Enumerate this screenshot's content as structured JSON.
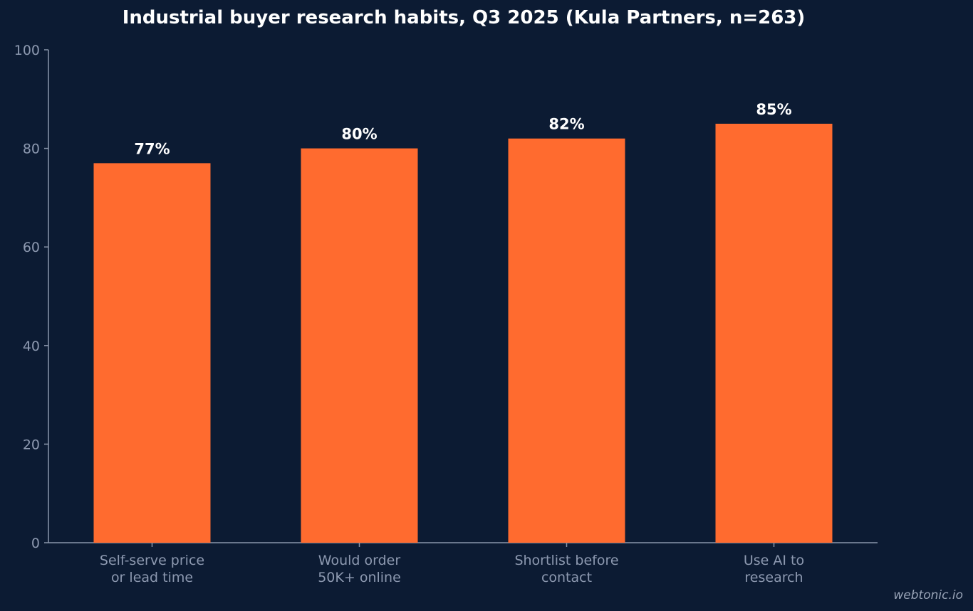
{
  "chart_data": {
    "type": "bar",
    "title": "Industrial buyer research habits, Q3 2025 (Kula Partners, n=263)",
    "categories": [
      [
        "Self-serve price",
        "or lead time"
      ],
      [
        "Would order",
        "50K+ online"
      ],
      [
        "Shortlist before",
        "contact"
      ],
      [
        "Use AI to",
        "research"
      ]
    ],
    "values": [
      77,
      80,
      82,
      85
    ],
    "value_labels": [
      "77%",
      "80%",
      "82%",
      "85%"
    ],
    "ylim": [
      0,
      100
    ],
    "yticks": [
      0,
      20,
      40,
      60,
      80,
      100
    ],
    "xlabel": "",
    "ylabel": "",
    "grid": false,
    "legend": "none"
  },
  "colors": {
    "background": "#0c1b33",
    "bar": "#ff6b2f",
    "axis": "#8a96ab",
    "tick_text": "#8d99b0",
    "value_text": "#ffffff",
    "title_text": "#ffffff"
  },
  "watermark": "webtonic.io"
}
